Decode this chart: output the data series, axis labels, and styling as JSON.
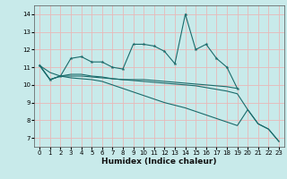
{
  "xlabel": "Humidex (Indice chaleur)",
  "xlim": [
    -0.5,
    23.5
  ],
  "ylim": [
    6.5,
    14.5
  ],
  "yticks": [
    7,
    8,
    9,
    10,
    11,
    12,
    13,
    14
  ],
  "xticks": [
    0,
    1,
    2,
    3,
    4,
    5,
    6,
    7,
    8,
    9,
    10,
    11,
    12,
    13,
    14,
    15,
    16,
    17,
    18,
    19,
    20,
    21,
    22,
    23
  ],
  "bg_color": "#c8eaea",
  "grid_color": "#e8b8b8",
  "line_color": "#1a6b6b",
  "line_main": [
    11.1,
    10.3,
    10.5,
    11.5,
    11.6,
    11.3,
    11.3,
    11.0,
    10.9,
    12.3,
    12.3,
    12.2,
    11.9,
    11.2,
    14.0,
    12.0,
    12.3,
    11.5,
    11.0,
    9.8,
    null,
    null,
    null,
    null
  ],
  "line_flat1": [
    11.1,
    10.3,
    10.5,
    10.5,
    10.5,
    10.45,
    10.4,
    10.35,
    10.3,
    10.3,
    10.3,
    10.25,
    10.2,
    10.15,
    10.1,
    10.05,
    10.0,
    9.95,
    9.9,
    9.8,
    null,
    null,
    null,
    null
  ],
  "line_decline1": [
    11.1,
    10.7,
    10.5,
    10.4,
    10.35,
    10.3,
    10.2,
    10.0,
    9.8,
    9.6,
    9.4,
    9.2,
    9.0,
    8.85,
    8.7,
    8.5,
    8.3,
    8.1,
    7.9,
    7.7,
    8.6,
    7.8,
    7.5,
    6.8
  ],
  "line_decline2": [
    11.1,
    10.3,
    10.5,
    10.6,
    10.6,
    10.5,
    10.45,
    10.35,
    10.3,
    10.25,
    10.2,
    10.15,
    10.1,
    10.05,
    10.0,
    9.95,
    9.85,
    9.75,
    9.65,
    9.5,
    8.6,
    7.8,
    7.5,
    6.8
  ]
}
